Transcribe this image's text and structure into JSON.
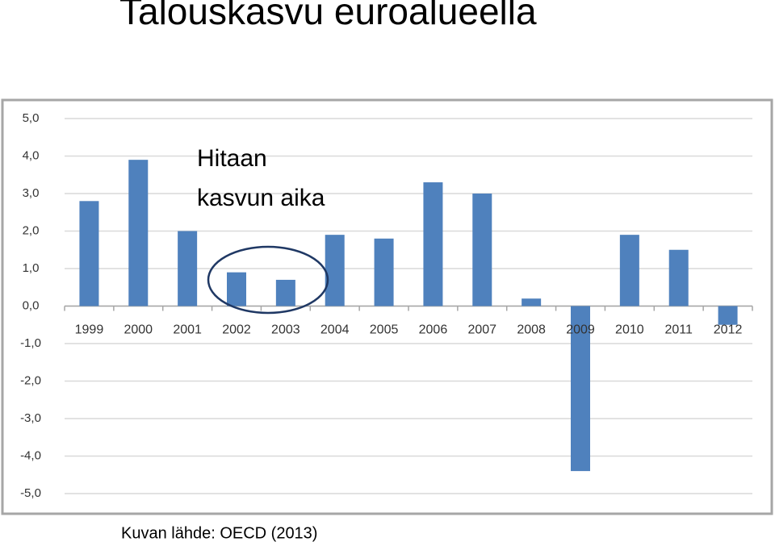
{
  "chart_data": {
    "type": "bar",
    "title": "Talouskasvu euroalueella",
    "annotation": [
      "Hitaan",
      "kasvun aika"
    ],
    "source": "Kuvan lähde: OECD (2013)",
    "categories": [
      "1999",
      "2000",
      "2001",
      "2002",
      "2003",
      "2004",
      "2005",
      "2006",
      "2007",
      "2008",
      "2009",
      "2010",
      "2011",
      "2012"
    ],
    "values": [
      2.8,
      3.9,
      2.0,
      0.9,
      0.7,
      1.9,
      1.8,
      3.3,
      3.0,
      0.2,
      -4.4,
      1.9,
      1.5,
      -0.5
    ],
    "color": "#4f81bd",
    "ylim": [
      -5,
      5
    ],
    "yticks": [
      {
        "value": -5,
        "label": "-5,0"
      },
      {
        "value": -4,
        "label": "-4,0"
      },
      {
        "value": -3,
        "label": "-3,0"
      },
      {
        "value": -2,
        "label": "-2,0"
      },
      {
        "value": -1,
        "label": "-1,0"
      },
      {
        "value": 0,
        "label": "0,0"
      },
      {
        "value": 1,
        "label": "1,0"
      },
      {
        "value": 2,
        "label": "2,0"
      },
      {
        "value": 3,
        "label": "3,0"
      },
      {
        "value": 4,
        "label": "4,0"
      },
      {
        "value": 5,
        "label": "5,0"
      }
    ],
    "grid": true
  }
}
